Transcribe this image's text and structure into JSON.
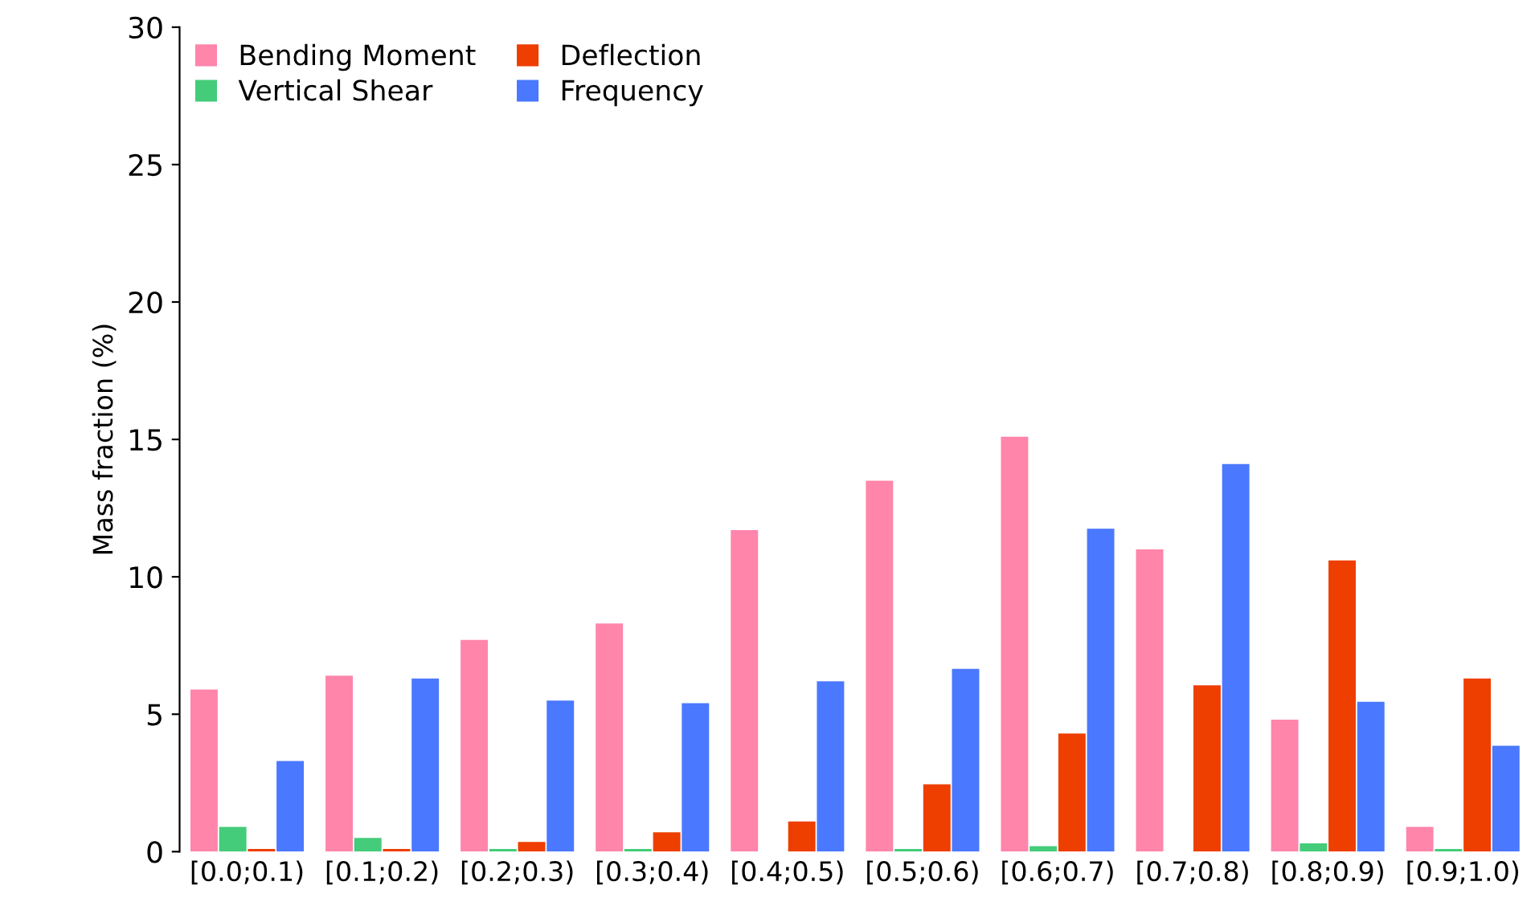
{
  "chart_data": {
    "type": "bar",
    "ylabel": "Mass fraction (%)",
    "categories": [
      "[0.0;0.1)",
      "[0.1;0.2)",
      "[0.2;0.3)",
      "[0.3;0.4)",
      "[0.4;0.5)",
      "[0.5;0.6)",
      "[0.6;0.7)",
      "[0.7;0.8)",
      "[0.8;0.9)",
      "[0.9;1.0)"
    ],
    "series": [
      {
        "name": "Bending Moment",
        "color": "#ff85ab",
        "values": [
          5.9,
          6.4,
          7.7,
          8.3,
          11.7,
          13.5,
          15.1,
          11.0,
          4.8,
          0.9
        ]
      },
      {
        "name": "Vertical Shear",
        "color": "#44cc7a",
        "values": [
          0.9,
          0.5,
          0.1,
          0.1,
          0,
          0.1,
          0.2,
          0,
          0.3,
          0.1
        ]
      },
      {
        "name": "Deflection",
        "color": "#ee3e00",
        "values": [
          0.1,
          0.1,
          0.35,
          0.7,
          1.1,
          2.45,
          4.3,
          6.05,
          10.6,
          6.3
        ]
      },
      {
        "name": "Frequency",
        "color": "#4a78ff",
        "values": [
          3.3,
          6.3,
          5.5,
          5.4,
          6.2,
          6.65,
          11.75,
          14.1,
          5.45,
          3.85
        ]
      }
    ],
    "ylim": [
      0,
      30
    ],
    "yticks": [
      0,
      5,
      10,
      15,
      20,
      25,
      30
    ],
    "grid": false,
    "legend": "top left"
  }
}
